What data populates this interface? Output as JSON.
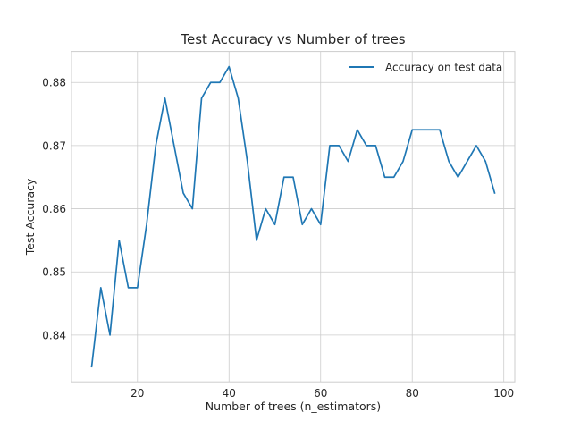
{
  "chart_data": {
    "type": "line",
    "title": "Test Accuracy vs Number of trees",
    "xlabel": "Number of trees (n_estimators)",
    "ylabel": "Test Accuracy",
    "xlim": [
      5.6,
      102.4
    ],
    "ylim": [
      0.8326,
      0.8849
    ],
    "xticks": [
      20,
      40,
      60,
      80,
      100
    ],
    "yticks": [
      0.84,
      0.85,
      0.86,
      0.87,
      0.88
    ],
    "ytick_labels": [
      "0.84",
      "0.85",
      "0.86",
      "0.87",
      "0.88"
    ],
    "grid": true,
    "legend_position": "top-right",
    "series": [
      {
        "name": "Accuracy on test data",
        "color": "#1f77b4",
        "x": [
          10,
          12,
          14,
          16,
          18,
          20,
          22,
          24,
          26,
          28,
          30,
          32,
          34,
          36,
          38,
          40,
          42,
          44,
          46,
          48,
          50,
          52,
          54,
          56,
          58,
          60,
          62,
          64,
          66,
          68,
          70,
          72,
          74,
          76,
          78,
          80,
          82,
          84,
          86,
          88,
          90,
          92,
          94,
          96,
          98
        ],
        "values": [
          0.835,
          0.8475,
          0.84,
          0.855,
          0.8475,
          0.8475,
          0.8575,
          0.87,
          0.8775,
          0.87,
          0.8625,
          0.86,
          0.8775,
          0.88,
          0.88,
          0.8825,
          0.8775,
          0.8675,
          0.855,
          0.86,
          0.8575,
          0.865,
          0.865,
          0.8575,
          0.86,
          0.8575,
          0.87,
          0.87,
          0.8675,
          0.8725,
          0.87,
          0.87,
          0.865,
          0.865,
          0.8675,
          0.8725,
          0.8725,
          0.8725,
          0.8725,
          0.8675,
          0.865,
          0.8675,
          0.87,
          0.8675,
          0.8625
        ]
      }
    ]
  }
}
